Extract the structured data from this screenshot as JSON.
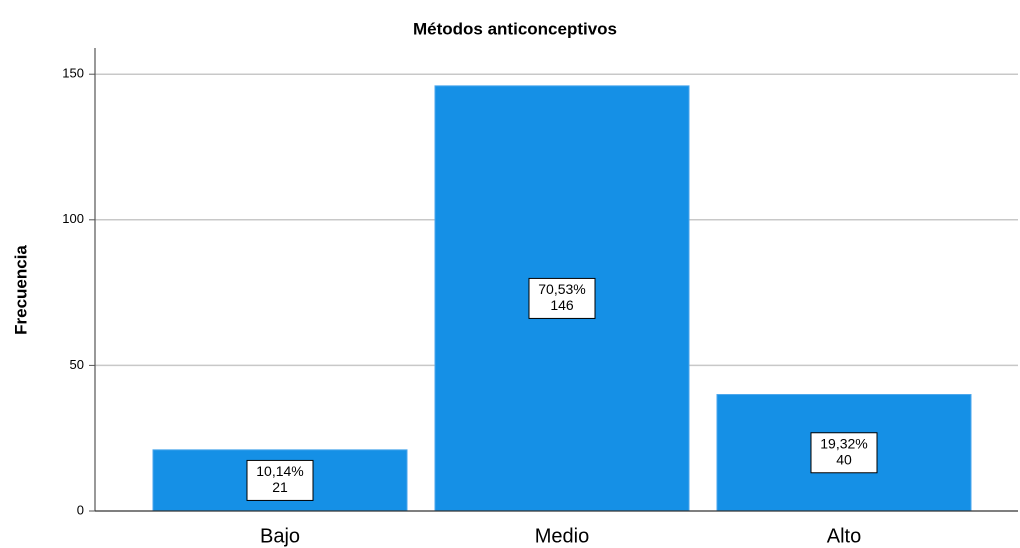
{
  "chart_data": {
    "type": "bar",
    "title": "Métodos anticonceptivos",
    "y_label": "Frecuencia",
    "categories": [
      "Bajo",
      "Medio",
      "Alto"
    ],
    "values": [
      21,
      146,
      40
    ],
    "percent_labels": [
      "10,14%",
      "70,53%",
      "19,32%"
    ],
    "color": "#1590e6",
    "ylim": [
      0,
      159
    ],
    "yticks": [
      0,
      50,
      100,
      150
    ],
    "grid": true
  }
}
